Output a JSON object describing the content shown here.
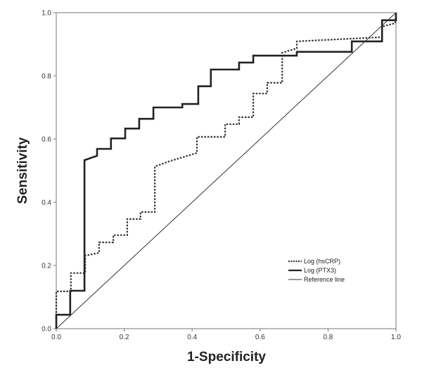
{
  "chart_data": {
    "type": "line",
    "title": "",
    "xlabel": "1-Specificity",
    "ylabel": "Sensitivity",
    "xlim": [
      0,
      1
    ],
    "ylim": [
      0,
      1
    ],
    "xticks": [
      "0.0",
      "0.2",
      "0.4",
      "0.6",
      "0.8",
      "1.0"
    ],
    "yticks": [
      "0.0",
      "0.2",
      "0.4",
      "0.6",
      "0.8",
      "1.0"
    ],
    "legend_position": "bottom-right",
    "series": [
      {
        "name": "Log (hsCRP)",
        "style": "dotted",
        "color": "#333333",
        "x": [
          0,
          0,
          0.043,
          0.043,
          0.085,
          0.085,
          0.126,
          0.126,
          0.168,
          0.168,
          0.209,
          0.209,
          0.248,
          0.248,
          0.29,
          0.29,
          0.331,
          0.414,
          0.414,
          0.497,
          0.497,
          0.538,
          0.538,
          0.58,
          0.58,
          0.621,
          0.621,
          0.665,
          0.665,
          0.708,
          0.708,
          0.948,
          0.959,
          0.959,
          0.998,
          1
        ],
        "y": [
          0,
          0.118,
          0.118,
          0.176,
          0.176,
          0.231,
          0.24,
          0.273,
          0.273,
          0.296,
          0.296,
          0.347,
          0.347,
          0.369,
          0.369,
          0.513,
          0.529,
          0.556,
          0.607,
          0.607,
          0.647,
          0.647,
          0.669,
          0.669,
          0.744,
          0.744,
          0.778,
          0.778,
          0.873,
          0.887,
          0.909,
          0.922,
          0.922,
          0.956,
          0.967,
          1
        ]
      },
      {
        "name": "Log (PTX3)",
        "style": "solid-thick",
        "color": "#222222",
        "x": [
          0,
          0,
          0.041,
          0.041,
          0.083,
          0.083,
          0.12,
          0.12,
          0.161,
          0.161,
          0.203,
          0.203,
          0.244,
          0.244,
          0.286,
          0.286,
          0.371,
          0.371,
          0.418,
          0.418,
          0.455,
          0.455,
          0.538,
          0.538,
          0.58,
          0.58,
          0.708,
          0.708,
          0.87,
          0.87,
          0.959,
          0.959,
          1,
          1
        ],
        "y": [
          0,
          0.044,
          0.044,
          0.12,
          0.12,
          0.533,
          0.547,
          0.569,
          0.569,
          0.602,
          0.602,
          0.633,
          0.633,
          0.664,
          0.664,
          0.7,
          0.7,
          0.711,
          0.711,
          0.767,
          0.767,
          0.82,
          0.82,
          0.842,
          0.842,
          0.864,
          0.864,
          0.876,
          0.876,
          0.909,
          0.909,
          0.976,
          0.976,
          1
        ]
      },
      {
        "name": "Reference line",
        "style": "solid-thin",
        "color": "#333333",
        "x": [
          0,
          1
        ],
        "y": [
          0,
          1
        ]
      }
    ]
  }
}
